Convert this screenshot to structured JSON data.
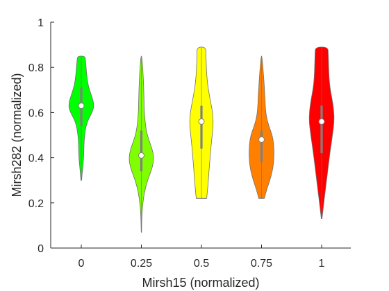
{
  "chart_data": {
    "type": "violin",
    "xlabel": "Mirsh15 (normalized)",
    "ylabel": "Mirsh282 (normalized)",
    "ylim": [
      0,
      1
    ],
    "yticks": [
      "0",
      "0.2",
      "0.4",
      "0.6",
      "0.8",
      "1"
    ],
    "grid": false,
    "legend": "none",
    "categories": [
      "0",
      "0.25",
      "0.5",
      "0.75",
      "1"
    ],
    "series": [
      {
        "category": "0",
        "color": "#00ff00",
        "min": 0.3,
        "max": 0.85,
        "q1": 0.54,
        "median": 0.63,
        "q3": 0.71,
        "profile": [
          [
            0.3,
            0.02
          ],
          [
            0.33,
            0.05
          ],
          [
            0.37,
            0.1
          ],
          [
            0.4,
            0.14
          ],
          [
            0.44,
            0.15
          ],
          [
            0.48,
            0.17
          ],
          [
            0.52,
            0.22
          ],
          [
            0.56,
            0.35
          ],
          [
            0.59,
            0.55
          ],
          [
            0.62,
            0.72
          ],
          [
            0.65,
            0.7
          ],
          [
            0.68,
            0.56
          ],
          [
            0.72,
            0.4
          ],
          [
            0.76,
            0.32
          ],
          [
            0.8,
            0.28
          ],
          [
            0.83,
            0.24
          ],
          [
            0.85,
            0.22
          ]
        ]
      },
      {
        "category": "0.25",
        "color": "#80ff00",
        "min": 0.07,
        "max": 0.85,
        "q1": 0.34,
        "median": 0.41,
        "q3": 0.52,
        "profile": [
          [
            0.07,
            0.01
          ],
          [
            0.12,
            0.02
          ],
          [
            0.17,
            0.05
          ],
          [
            0.22,
            0.12
          ],
          [
            0.27,
            0.24
          ],
          [
            0.32,
            0.45
          ],
          [
            0.36,
            0.65
          ],
          [
            0.4,
            0.72
          ],
          [
            0.44,
            0.62
          ],
          [
            0.48,
            0.42
          ],
          [
            0.52,
            0.28
          ],
          [
            0.57,
            0.2
          ],
          [
            0.62,
            0.16
          ],
          [
            0.67,
            0.15
          ],
          [
            0.72,
            0.13
          ],
          [
            0.77,
            0.1
          ],
          [
            0.81,
            0.07
          ],
          [
            0.85,
            0.02
          ]
        ]
      },
      {
        "category": "0.5",
        "color": "#ffff00",
        "min": 0.22,
        "max": 0.89,
        "q1": 0.44,
        "median": 0.56,
        "q3": 0.63,
        "profile": [
          [
            0.22,
            0.3
          ],
          [
            0.25,
            0.34
          ],
          [
            0.3,
            0.4
          ],
          [
            0.35,
            0.44
          ],
          [
            0.4,
            0.5
          ],
          [
            0.45,
            0.55
          ],
          [
            0.5,
            0.62
          ],
          [
            0.55,
            0.68
          ],
          [
            0.6,
            0.65
          ],
          [
            0.65,
            0.52
          ],
          [
            0.7,
            0.4
          ],
          [
            0.75,
            0.32
          ],
          [
            0.8,
            0.28
          ],
          [
            0.85,
            0.26
          ],
          [
            0.89,
            0.26
          ]
        ]
      },
      {
        "category": "0.75",
        "color": "#ff8000",
        "min": 0.22,
        "max": 0.85,
        "q1": 0.38,
        "median": 0.48,
        "q3": 0.52,
        "profile": [
          [
            0.22,
            0.16
          ],
          [
            0.26,
            0.3
          ],
          [
            0.3,
            0.48
          ],
          [
            0.34,
            0.62
          ],
          [
            0.38,
            0.7
          ],
          [
            0.42,
            0.72
          ],
          [
            0.46,
            0.7
          ],
          [
            0.5,
            0.62
          ],
          [
            0.54,
            0.42
          ],
          [
            0.58,
            0.28
          ],
          [
            0.62,
            0.22
          ],
          [
            0.66,
            0.2
          ],
          [
            0.7,
            0.17
          ],
          [
            0.75,
            0.13
          ],
          [
            0.8,
            0.08
          ],
          [
            0.85,
            0.02
          ]
        ]
      },
      {
        "category": "1",
        "color": "#ff0000",
        "min": 0.13,
        "max": 0.89,
        "q1": 0.42,
        "median": 0.56,
        "q3": 0.63,
        "profile": [
          [
            0.13,
            0.02
          ],
          [
            0.17,
            0.08
          ],
          [
            0.21,
            0.14
          ],
          [
            0.26,
            0.22
          ],
          [
            0.31,
            0.3
          ],
          [
            0.36,
            0.38
          ],
          [
            0.41,
            0.46
          ],
          [
            0.46,
            0.55
          ],
          [
            0.51,
            0.64
          ],
          [
            0.56,
            0.72
          ],
          [
            0.61,
            0.7
          ],
          [
            0.66,
            0.6
          ],
          [
            0.71,
            0.48
          ],
          [
            0.76,
            0.42
          ],
          [
            0.81,
            0.4
          ],
          [
            0.86,
            0.38
          ],
          [
            0.89,
            0.36
          ]
        ]
      }
    ]
  }
}
